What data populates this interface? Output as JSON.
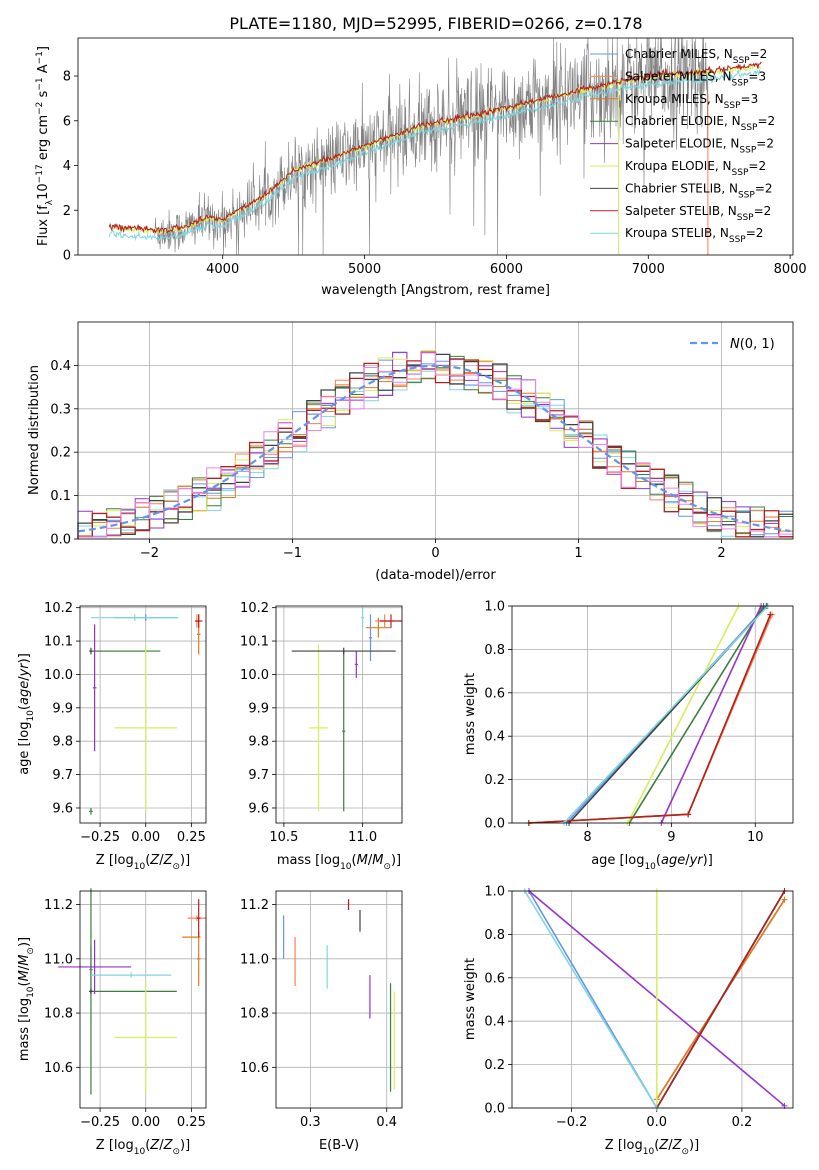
{
  "figure_title": "PLATE=1180, MJD=52995, FIBERID=0266, z=0.178",
  "colors": {
    "obs": "#808080",
    "norm": "#6495ed",
    "models": [
      "#6495ed",
      "#ff7f50",
      "#e07a1f",
      "#3c7f3c",
      "#9932cc",
      "#d4f05a",
      "#404040",
      "#b22222",
      "#7fd6e0"
    ],
    "extra_hist": "#ee82ee"
  },
  "chart_data": [
    {
      "id": "spectrum",
      "type": "line",
      "title": "PLATE=1180, MJD=52995, FIBERID=0266, z=0.178",
      "xlabel": "wavelength [Angstrom, rest frame]",
      "ylabel": "Flux [fλ10⁻¹⁷ erg cm⁻² s⁻¹ A⁻¹]",
      "xlim": [
        2980,
        8020
      ],
      "ylim": [
        0,
        9.7
      ],
      "xticks": [
        4000,
        5000,
        6000,
        7000,
        8000
      ],
      "yticks": [
        0,
        2,
        4,
        6,
        8
      ],
      "grid": false,
      "legend_position": "top-right",
      "legend": [
        {
          "base": "Chabrier MILES, N",
          "sub": "SSP",
          "tail": "=2"
        },
        {
          "base": "Salpeter MILES, N",
          "sub": "SSP",
          "tail": "=3"
        },
        {
          "base": "Kroupa MILES, N",
          "sub": "SSP",
          "tail": "=3"
        },
        {
          "base": "Chabrier ELODIE, N",
          "sub": "SSP",
          "tail": "=2"
        },
        {
          "base": "Salpeter ELODIE, N",
          "sub": "SSP",
          "tail": "=2"
        },
        {
          "base": "Kroupa ELODIE, N",
          "sub": "SSP",
          "tail": "=2"
        },
        {
          "base": "Chabrier STELIB, N",
          "sub": "SSP",
          "tail": "=2"
        },
        {
          "base": "Salpeter STELIB, N",
          "sub": "SSP",
          "tail": "=2"
        },
        {
          "base": "Kroupa STELIB, N",
          "sub": "SSP",
          "tail": "=2"
        }
      ],
      "observed_range": [
        3520,
        7420
      ],
      "model_points": [
        {
          "x": 3200,
          "y": 1.2
        },
        {
          "x": 3520,
          "y": 1.0
        },
        {
          "x": 3700,
          "y": 1.1
        },
        {
          "x": 3900,
          "y": 1.6
        },
        {
          "x": 4000,
          "y": 1.5
        },
        {
          "x": 4300,
          "y": 2.6
        },
        {
          "x": 4500,
          "y": 3.7
        },
        {
          "x": 4800,
          "y": 4.3
        },
        {
          "x": 5000,
          "y": 4.8
        },
        {
          "x": 5400,
          "y": 5.7
        },
        {
          "x": 5800,
          "y": 6.2
        },
        {
          "x": 6200,
          "y": 6.8
        },
        {
          "x": 6600,
          "y": 7.4
        },
        {
          "x": 7000,
          "y": 7.9
        },
        {
          "x": 7400,
          "y": 8.1
        },
        {
          "x": 7800,
          "y": 8.4
        }
      ]
    },
    {
      "id": "residuals",
      "type": "histogram",
      "xlabel": "(data-model)/error",
      "ylabel": "Normed distribution",
      "xlim": [
        -2.5,
        2.5
      ],
      "ylim": [
        0,
        0.5
      ],
      "xticks": [
        -2,
        -1,
        0,
        1,
        2
      ],
      "yticks": [
        0.0,
        0.1,
        0.2,
        0.3,
        0.4
      ],
      "grid": true,
      "legend_position": "top-right",
      "legend_label": "N(0,1)"
    },
    {
      "id": "age_vs_Z",
      "type": "errorbar",
      "xlabel": "Z [log₁₀(Z/Z⊙)]",
      "ylabel": "age  [log₁₀(age/yr)]",
      "xlim": [
        -0.36,
        0.33
      ],
      "ylim": [
        9.555,
        10.205
      ],
      "xticks": [
        -0.25,
        0.0,
        0.25
      ],
      "yticks": [
        9.6,
        9.7,
        9.8,
        9.9,
        10.0,
        10.1,
        10.2
      ],
      "grid": true,
      "points": [
        {
          "model": 0,
          "x": 0.0,
          "y": 10.17,
          "xerr": 0.17,
          "yerr": 0.01
        },
        {
          "model": 1,
          "x": 0.28,
          "y": 10.16,
          "xerr": 0.01,
          "yerr": 0.02
        },
        {
          "model": 2,
          "x": 0.29,
          "y": 10.12,
          "xerr": 0.01,
          "yerr": 0.06
        },
        {
          "model": 3,
          "x": -0.3,
          "y": 9.59,
          "xerr": 0.01,
          "yerr": 0.01
        },
        {
          "model": 4,
          "x": -0.28,
          "y": 9.96,
          "xerr": 0.01,
          "yerr": 0.19
        },
        {
          "model": 5,
          "x": 0.0,
          "y": 9.84,
          "xerr": 0.17,
          "yerr": 0.25
        },
        {
          "model": 6,
          "x": -0.3,
          "y": 10.07,
          "xerr": 0.01,
          "yerr": 0.01
        },
        {
          "model": 7,
          "x": 0.29,
          "y": 10.16,
          "xerr": 0.02,
          "yerr": 0.02
        },
        {
          "model": 8,
          "x": -0.06,
          "y": 10.17,
          "xerr": 0.24,
          "yerr": 0.01
        }
      ],
      "hlines": [
        {
          "model": 4,
          "y": 10.07,
          "x0": -0.3,
          "x1": 0.0
        },
        {
          "model": 3,
          "y": 10.07,
          "x0": -0.3,
          "x1": 0.08
        }
      ]
    },
    {
      "id": "age_vs_mass",
      "type": "errorbar",
      "xlabel": "mass [log₁₀(M/M⊙)]",
      "ylabel": "",
      "xlim": [
        10.45,
        11.25
      ],
      "ylim": [
        9.555,
        10.205
      ],
      "xticks": [
        10.5,
        11.0
      ],
      "yticks": [
        9.6,
        9.7,
        9.8,
        9.9,
        10.0,
        10.1,
        10.2
      ],
      "grid": true,
      "points": [
        {
          "model": 0,
          "x": 11.05,
          "y": 10.11,
          "xerr": 0.01,
          "yerr": 0.07
        },
        {
          "model": 1,
          "x": 11.14,
          "y": 10.16,
          "xerr": 0.06,
          "yerr": 0.02
        },
        {
          "model": 2,
          "x": 11.1,
          "y": 10.14,
          "xerr": 0.08,
          "yerr": 0.03
        },
        {
          "model": 3,
          "x": 10.88,
          "y": 9.83,
          "xerr": 0.01,
          "yerr": 0.24
        },
        {
          "model": 4,
          "x": 10.96,
          "y": 10.03,
          "xerr": 0.01,
          "yerr": 0.04
        },
        {
          "model": 5,
          "x": 10.72,
          "y": 9.84,
          "xerr": 0.06,
          "yerr": 0.25
        },
        {
          "model": 6,
          "x": 10.88,
          "y": 10.07,
          "xerr": 0.33,
          "yerr": 0.01
        },
        {
          "model": 7,
          "x": 11.18,
          "y": 10.16,
          "xerr": 0.07,
          "yerr": 0.02
        },
        {
          "model": 8,
          "x": 11.0,
          "y": 10.17,
          "xerr": 0.01,
          "yerr": 0.03
        }
      ]
    },
    {
      "id": "cum_mass_age",
      "type": "line",
      "xlabel": "age  [log₁₀(age/yr)]",
      "ylabel": "mass weight",
      "xlim": [
        7.1,
        10.45
      ],
      "ylim": [
        0,
        1.0
      ],
      "xticks": [
        8,
        9,
        10
      ],
      "yticks": [
        0.0,
        0.2,
        0.4,
        0.6,
        0.8,
        1.0
      ],
      "grid": true,
      "series": [
        {
          "model": 0,
          "x": [
            7.75,
            10.13
          ],
          "y": [
            0.0,
            1.0
          ]
        },
        {
          "model": 1,
          "x": [
            7.3,
            9.2,
            10.2
          ],
          "y": [
            0.0,
            0.04,
            0.96
          ]
        },
        {
          "model": 2,
          "x": [
            7.3,
            9.2,
            10.18
          ],
          "y": [
            0.0,
            0.04,
            0.96
          ]
        },
        {
          "model": 3,
          "x": [
            8.5,
            10.1
          ],
          "y": [
            0.0,
            1.0
          ]
        },
        {
          "model": 4,
          "x": [
            8.88,
            10.07
          ],
          "y": [
            0.0,
            1.0
          ]
        },
        {
          "model": 5,
          "x": [
            8.48,
            9.8
          ],
          "y": [
            0.0,
            1.0
          ]
        },
        {
          "model": 6,
          "x": [
            7.78,
            10.14
          ],
          "y": [
            0.0,
            1.0
          ]
        },
        {
          "model": 7,
          "x": [
            7.3,
            9.2,
            10.18
          ],
          "y": [
            0.0,
            0.04,
            0.96
          ]
        },
        {
          "model": 8,
          "x": [
            7.72,
            10.15
          ],
          "y": [
            0.0,
            1.0
          ]
        }
      ]
    },
    {
      "id": "mass_vs_Z",
      "type": "errorbar",
      "xlabel": "Z [log₁₀(Z/Z⊙)]",
      "ylabel": "mass [log₁₀(M/M⊙)]",
      "xlim": [
        -0.36,
        0.33
      ],
      "ylim": [
        10.45,
        11.25
      ],
      "xticks": [
        -0.25,
        0.0,
        0.25
      ],
      "yticks": [
        10.6,
        10.8,
        11.0,
        11.2
      ],
      "grid": true,
      "points": [
        {
          "model": 0,
          "x": -0.3,
          "y": 10.96,
          "xerr": 0.01,
          "yerr": 0.09
        },
        {
          "model": 1,
          "x": 0.28,
          "y": 11.15,
          "xerr": 0.05,
          "yerr": 0.01
        },
        {
          "model": 2,
          "x": 0.29,
          "y": 11.0,
          "xerr": 0.01,
          "yerr": 0.1
        },
        {
          "model": 3,
          "x": -0.3,
          "y": 10.88,
          "xerr": 0.01,
          "yerr": 0.38
        },
        {
          "model": 4,
          "x": -0.28,
          "y": 10.97,
          "xerr": 0.2,
          "yerr": 0.1
        },
        {
          "model": 5,
          "x": 0.0,
          "y": 10.71,
          "xerr": 0.17,
          "yerr": 0.21
        },
        {
          "model": 6,
          "x": -0.3,
          "y": 10.88,
          "xerr": 0.01,
          "yerr": 0.01
        },
        {
          "model": 7,
          "x": 0.29,
          "y": 11.15,
          "xerr": 0.01,
          "yerr": 0.07
        },
        {
          "model": 8,
          "x": -0.08,
          "y": 10.94,
          "xerr": 0.22,
          "yerr": 0.01
        }
      ],
      "hlines": [
        {
          "model": 3,
          "y": 10.88,
          "x0": -0.3,
          "x1": 0.17
        },
        {
          "model": 2,
          "y": 11.08,
          "x0": 0.2,
          "x1": 0.3
        }
      ]
    },
    {
      "id": "mass_vs_EBV",
      "type": "errorbar",
      "xlabel": "E(B-V)",
      "ylabel": "",
      "xlim": [
        0.255,
        0.42
      ],
      "ylim": [
        10.45,
        11.25
      ],
      "xticks": [
        0.3,
        0.4
      ],
      "yticks": [
        10.6,
        10.8,
        11.0,
        11.2
      ],
      "grid": true,
      "points": [
        {
          "model": 0,
          "x": 0.265,
          "y": 11.08,
          "xerr": 0.0,
          "yerr": 0.08
        },
        {
          "model": 1,
          "x": 0.28,
          "y": 10.99,
          "xerr": 0.0,
          "yerr": 0.09
        },
        {
          "model": 7,
          "x": 0.35,
          "y": 11.2,
          "xerr": 0.0,
          "yerr": 0.02
        },
        {
          "model": 8,
          "x": 0.322,
          "y": 10.97,
          "xerr": 0.0,
          "yerr": 0.08
        },
        {
          "model": 6,
          "x": 0.365,
          "y": 11.14,
          "xerr": 0.0,
          "yerr": 0.04
        },
        {
          "model": 4,
          "x": 0.378,
          "y": 10.86,
          "xerr": 0.0,
          "yerr": 0.08
        },
        {
          "model": 3,
          "x": 0.405,
          "y": 10.71,
          "xerr": 0.0,
          "yerr": 0.2
        },
        {
          "model": 5,
          "x": 0.41,
          "y": 10.7,
          "xerr": 0.0,
          "yerr": 0.18
        }
      ]
    },
    {
      "id": "cum_mass_Z",
      "type": "line",
      "xlabel": "Z [log₁₀(Z/Z⊙)]",
      "ylabel": "mass weight",
      "xlim": [
        -0.34,
        0.32
      ],
      "ylim": [
        0,
        1.0
      ],
      "xticks": [
        -0.2,
        0.0,
        0.2
      ],
      "yticks": [
        0.0,
        0.2,
        0.4,
        0.6,
        0.8,
        1.0
      ],
      "grid": true,
      "series": [
        {
          "model": 0,
          "x": [
            -0.3,
            0.0,
            0.3
          ],
          "y": [
            1.0,
            0.0,
            1.0
          ]
        },
        {
          "model": 1,
          "x": [
            0.0,
            0.3
          ],
          "y": [
            0.04,
            0.96
          ]
        },
        {
          "model": 2,
          "x": [
            0.0,
            0.3
          ],
          "y": [
            0.04,
            0.96
          ]
        },
        {
          "model": 3,
          "x": [
            0.0,
            0.3
          ],
          "y": [
            0.0,
            1.0
          ]
        },
        {
          "model": 4,
          "x": [
            -0.3,
            0.3
          ],
          "y": [
            1.0,
            0.01
          ]
        },
        {
          "model": 5,
          "x": [
            0.0,
            0.0
          ],
          "y": [
            0.0,
            1.0
          ]
        },
        {
          "model": 6,
          "x": [
            0.0,
            0.3
          ],
          "y": [
            0.0,
            1.0
          ]
        },
        {
          "model": 7,
          "x": [
            0.0,
            0.3
          ],
          "y": [
            0.0,
            1.0
          ]
        },
        {
          "model": 8,
          "x": [
            -0.31,
            0.0
          ],
          "y": [
            1.0,
            0.0
          ]
        }
      ]
    }
  ]
}
